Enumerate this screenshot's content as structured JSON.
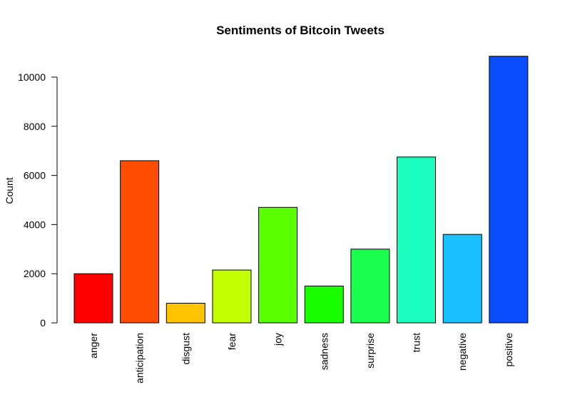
{
  "chart_data": {
    "type": "bar",
    "title": "Sentiments of Bitcoin Tweets",
    "xlabel": "",
    "ylabel": "Count",
    "ylim": [
      0,
      10000
    ],
    "yticks": [
      0,
      2000,
      4000,
      6000,
      8000,
      10000
    ],
    "categories": [
      "anger",
      "anticipation",
      "disgust",
      "fear",
      "joy",
      "sadness",
      "surprise",
      "trust",
      "negative",
      "positive"
    ],
    "values": [
      2000,
      6600,
      800,
      2150,
      4700,
      1500,
      3000,
      6750,
      3600,
      10850
    ],
    "colors": [
      "#ff0000",
      "#ff4d00",
      "#ffc300",
      "#c3ff00",
      "#5bff00",
      "#1aff00",
      "#1aff4d",
      "#1affbf",
      "#1abfff",
      "#0a4dff"
    ],
    "grid": false,
    "legend": "none"
  }
}
